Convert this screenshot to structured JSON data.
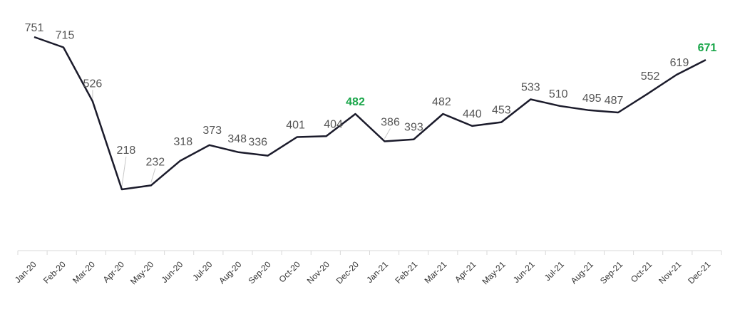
{
  "chart_data": {
    "type": "line",
    "title": "",
    "xlabel": "",
    "ylabel": "",
    "grid": false,
    "categories": [
      "Jan-20",
      "Feb-20",
      "Mar-20",
      "Apr-20",
      "May-20",
      "Jun-20",
      "Jul-20",
      "Aug-20",
      "Sep-20",
      "Oct-20",
      "Nov-20",
      "Dec-20",
      "Jan-21",
      "Feb-21",
      "Mar-21",
      "Apr-21",
      "May-21",
      "Jun-21",
      "Jul-21",
      "Aug-21",
      "Sep-21",
      "Oct-21",
      "Nov-21",
      "Dec-21"
    ],
    "series": [
      {
        "values": [
          751,
          715,
          526,
          218,
          232,
          318,
          373,
          348,
          336,
          401,
          404,
          482,
          386,
          393,
          482,
          440,
          453,
          533,
          510,
          495,
          487,
          552,
          619,
          671
        ],
        "color": "#1b1b2b"
      }
    ],
    "highlighted_points": [
      "Dec-20",
      "Dec-21"
    ],
    "highlight_color": "#1aa64a",
    "ylim": [
      0,
      800
    ]
  }
}
